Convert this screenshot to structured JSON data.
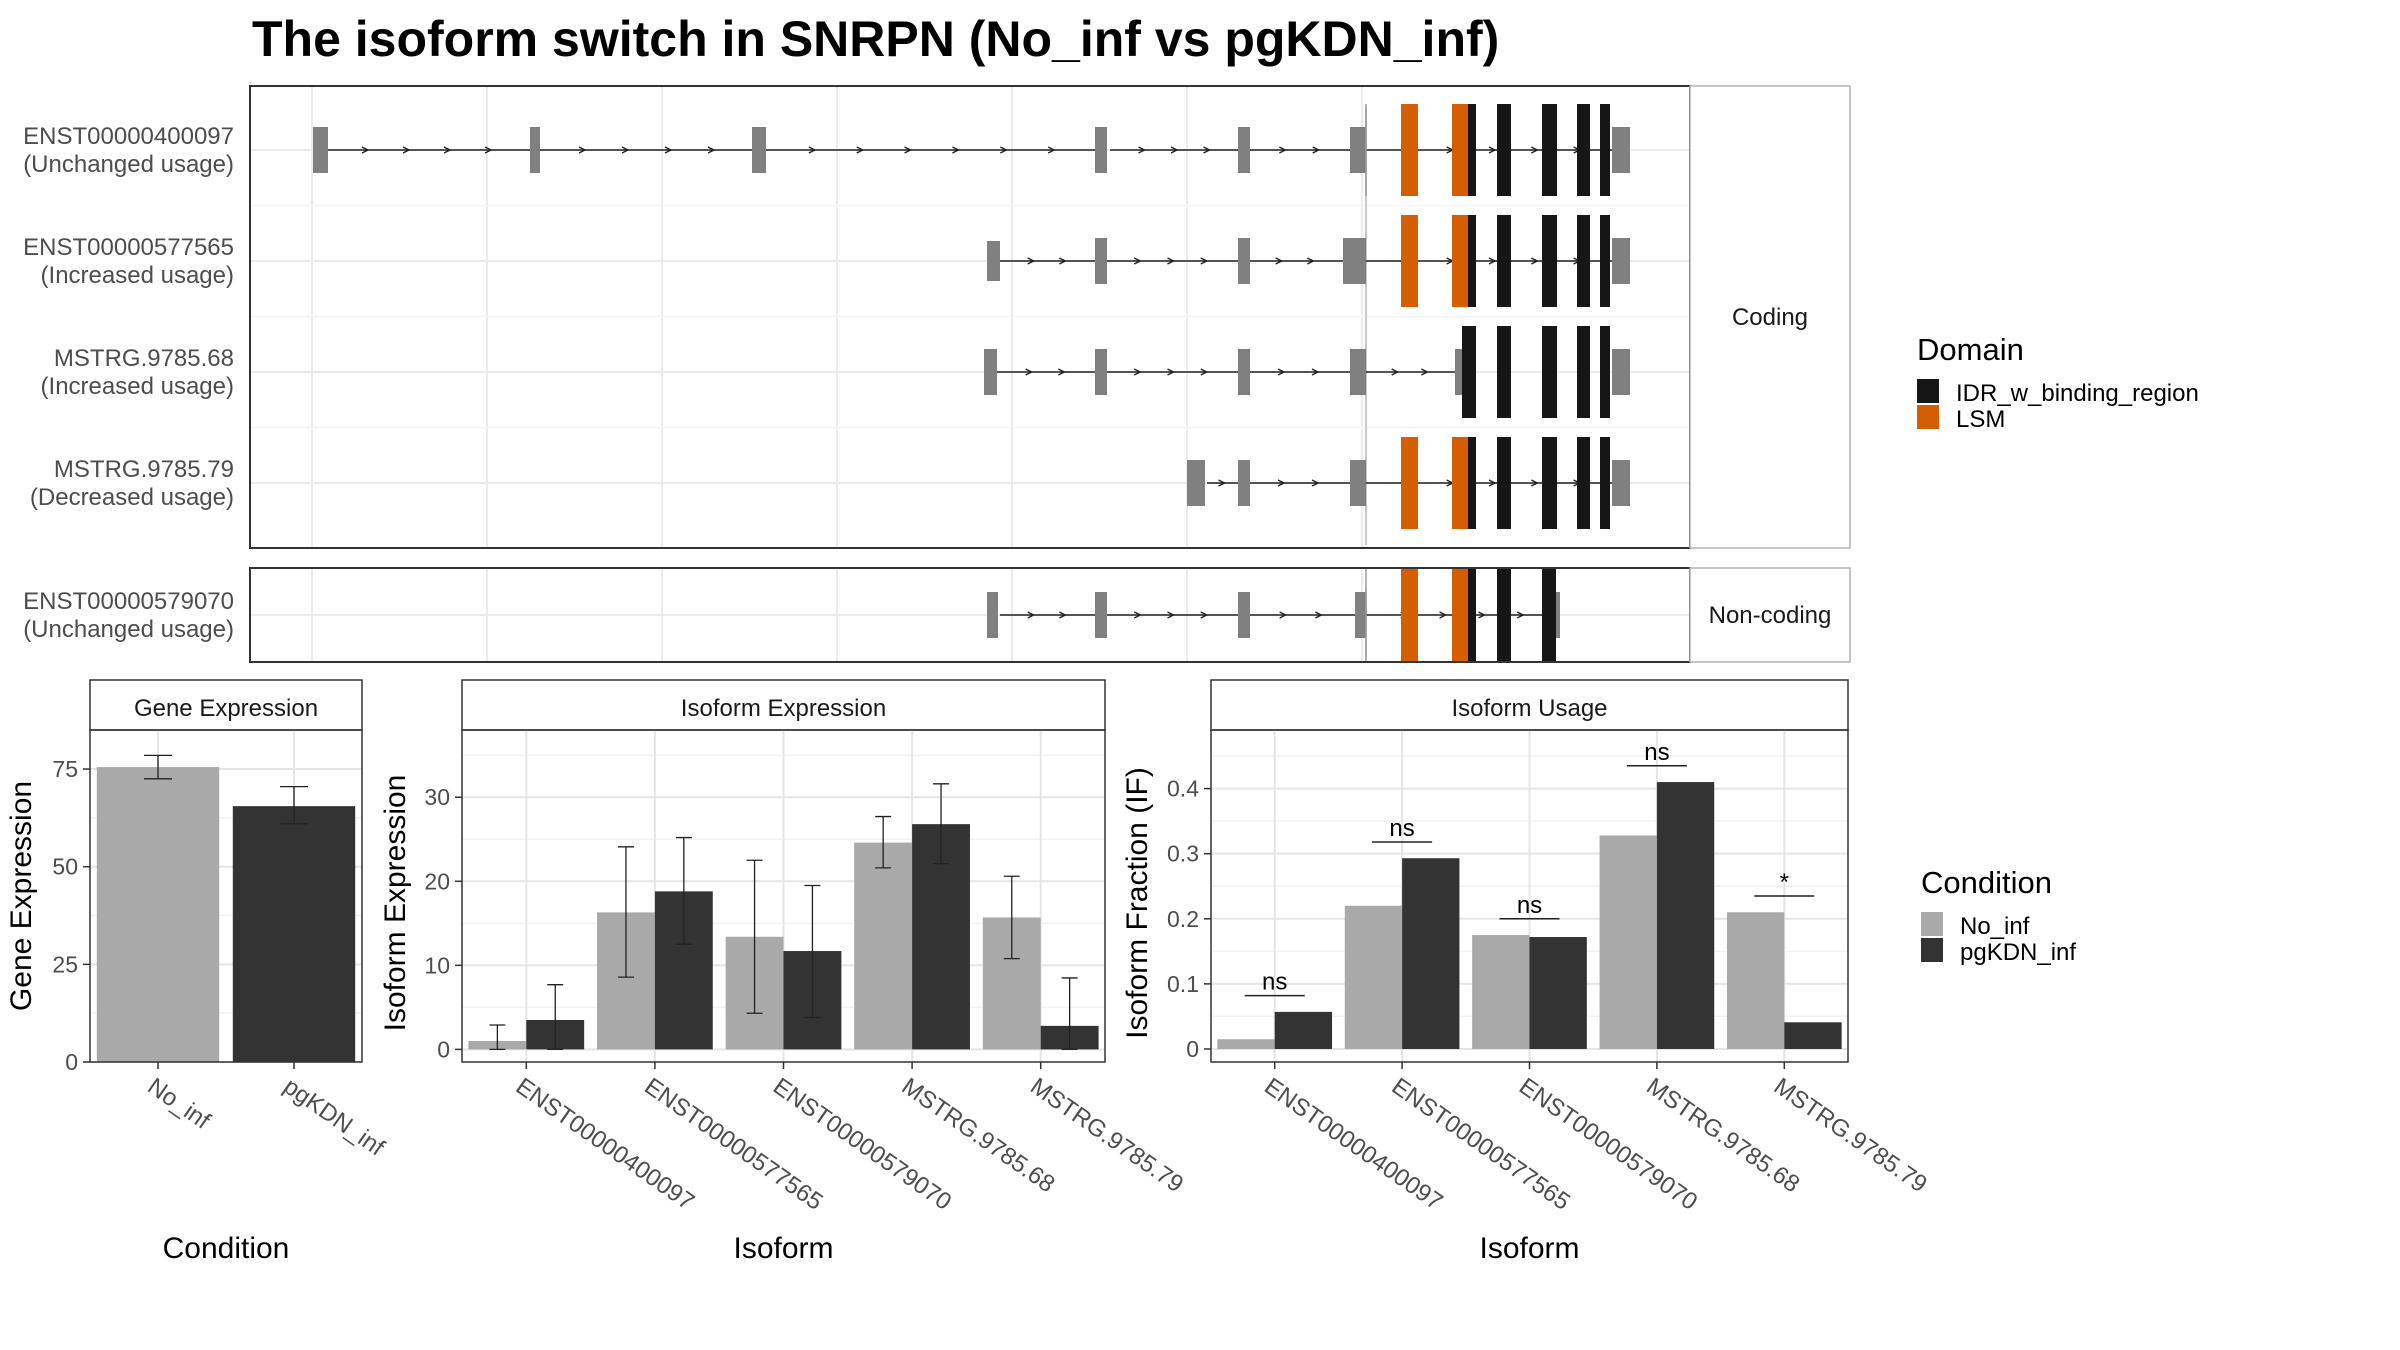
{
  "title": "The isoform switch in SNRPN (No_inf vs pgKDN_inf)",
  "colors": {
    "no_inf": "#a9a9a9",
    "pgkdn_inf": "#333333",
    "exon": "#808080",
    "idr": "#161616",
    "lsm": "#d55e00"
  },
  "structure": {
    "panels": [
      {
        "label": "Coding",
        "tracks": [
          {
            "id": "ENST00000400097",
            "usage": "(Unchanged usage)"
          },
          {
            "id": "ENST00000577565",
            "usage": "(Increased usage)"
          },
          {
            "id": "MSTRG.9785.68",
            "usage": "(Increased usage)"
          },
          {
            "id": "MSTRG.9785.79",
            "usage": "(Decreased usage)"
          }
        ]
      },
      {
        "label": "Non-coding",
        "tracks": [
          {
            "id": "ENST00000579070",
            "usage": "(Unchanged usage)"
          }
        ]
      }
    ]
  },
  "legends": {
    "domain": {
      "title": "Domain",
      "items": [
        {
          "label": "IDR_w_binding_region",
          "color": "#161616"
        },
        {
          "label": "LSM",
          "color": "#d55e00"
        }
      ]
    },
    "condition": {
      "title": "Condition",
      "items": [
        {
          "label": "No_inf",
          "color": "#a9a9a9"
        },
        {
          "label": "pgKDN_inf",
          "color": "#333333"
        }
      ]
    }
  },
  "chart_data": [
    {
      "type": "bar",
      "title": "Gene Expression",
      "xlabel": "Condition",
      "ylabel": "Gene Expression",
      "categories": [
        "No_inf",
        "pgKDN_inf"
      ],
      "values": [
        75.5,
        65.5
      ],
      "errors": [
        [
          72.5,
          78.5
        ],
        [
          61,
          70.5
        ]
      ],
      "ylim": [
        0,
        85
      ],
      "yticks": [
        0,
        25,
        50,
        75
      ],
      "colors": [
        "#a9a9a9",
        "#333333"
      ]
    },
    {
      "type": "bar",
      "title": "Isoform Expression",
      "xlabel": "Isoform",
      "ylabel": "Isoform Expression",
      "categories": [
        "ENST00000400097",
        "ENST00000577565",
        "ENST00000579070",
        "MSTRG.9785.68",
        "MSTRG.9785.79"
      ],
      "series": [
        {
          "name": "No_inf",
          "values": [
            1,
            16.3,
            13.4,
            24.6,
            15.7
          ],
          "errors": [
            [
              0,
              2.9
            ],
            [
              8.6,
              24.1
            ],
            [
              4.3,
              22.5
            ],
            [
              21.6,
              27.7
            ],
            [
              10.8,
              20.6
            ]
          ]
        },
        {
          "name": "pgKDN_inf",
          "values": [
            3.5,
            18.8,
            11.7,
            26.8,
            2.8
          ],
          "errors": [
            [
              0,
              7.7
            ],
            [
              12.5,
              25.2
            ],
            [
              3.8,
              19.5
            ],
            [
              22.1,
              31.6
            ],
            [
              0,
              8.5
            ]
          ]
        }
      ],
      "ylim": [
        -1.5,
        38
      ],
      "yticks": [
        0,
        10,
        20,
        30
      ]
    },
    {
      "type": "bar",
      "title": "Isoform Usage",
      "xlabel": "Isoform",
      "ylabel": "Isoform Fraction (IF)",
      "categories": [
        "ENST00000400097",
        "ENST00000577565",
        "ENST00000579070",
        "MSTRG.9785.68",
        "MSTRG.9785.79"
      ],
      "series": [
        {
          "name": "No_inf",
          "values": [
            0.015,
            0.22,
            0.175,
            0.328,
            0.21
          ]
        },
        {
          "name": "pgKDN_inf",
          "values": [
            0.057,
            0.293,
            0.172,
            0.41,
            0.041
          ]
        }
      ],
      "significance": [
        "ns",
        "ns",
        "ns",
        "ns",
        "*"
      ],
      "ylim": [
        -0.02,
        0.49
      ],
      "yticks": [
        0.0,
        0.1,
        0.2,
        0.3,
        0.4
      ]
    }
  ]
}
